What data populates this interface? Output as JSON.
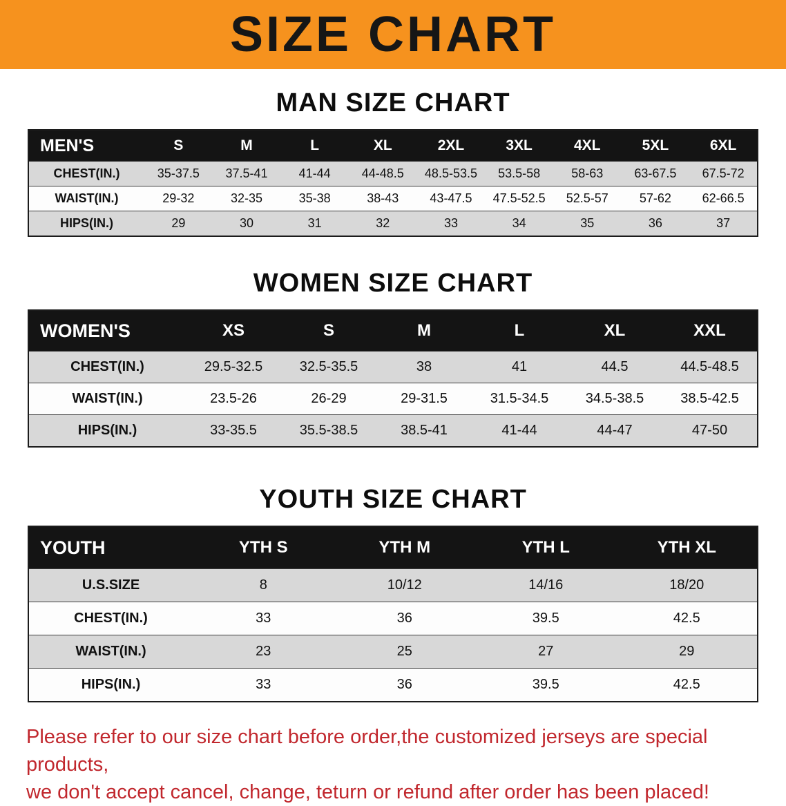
{
  "page": {
    "banner_title": "SIZE CHART",
    "accent_orange": "#f6921e",
    "table_header_bg": "#141414",
    "row_alt_bg": "#d8d8d8",
    "disclaimer_color": "#c1272d",
    "disclaimer_line1": "Please refer to our size chart before order,the customized jerseys are special products,",
    "disclaimer_line2": "we don't accept cancel, change, teturn or refund after order has been placed!"
  },
  "chart_data": [
    {
      "type": "table",
      "title": "MAN SIZE CHART",
      "corner_label": "MEN'S",
      "columns": [
        "S",
        "M",
        "L",
        "XL",
        "2XL",
        "3XL",
        "4XL",
        "5XL",
        "6XL"
      ],
      "rows": [
        {
          "label": "CHEST(IN.)",
          "values": [
            "35-37.5",
            "37.5-41",
            "41-44",
            "44-48.5",
            "48.5-53.5",
            "53.5-58",
            "58-63",
            "63-67.5",
            "67.5-72"
          ]
        },
        {
          "label": "WAIST(IN.)",
          "values": [
            "29-32",
            "32-35",
            "35-38",
            "38-43",
            "43-47.5",
            "47.5-52.5",
            "52.5-57",
            "57-62",
            "62-66.5"
          ]
        },
        {
          "label": "HIPS(IN.)",
          "values": [
            "29",
            "30",
            "31",
            "32",
            "33",
            "34",
            "35",
            "36",
            "37"
          ]
        }
      ]
    },
    {
      "type": "table",
      "title": "WOMEN SIZE CHART",
      "corner_label": "WOMEN'S",
      "columns": [
        "XS",
        "S",
        "M",
        "L",
        "XL",
        "XXL"
      ],
      "rows": [
        {
          "label": "CHEST(IN.)",
          "values": [
            "29.5-32.5",
            "32.5-35.5",
            "38",
            "41",
            "44.5",
            "44.5-48.5"
          ]
        },
        {
          "label": "WAIST(IN.)",
          "values": [
            "23.5-26",
            "26-29",
            "29-31.5",
            "31.5-34.5",
            "34.5-38.5",
            "38.5-42.5"
          ]
        },
        {
          "label": "HIPS(IN.)",
          "values": [
            "33-35.5",
            "35.5-38.5",
            "38.5-41",
            "41-44",
            "44-47",
            "47-50"
          ]
        }
      ]
    },
    {
      "type": "table",
      "title": "YOUTH SIZE CHART",
      "corner_label": "YOUTH",
      "columns": [
        "YTH S",
        "YTH M",
        "YTH L",
        "YTH XL"
      ],
      "rows": [
        {
          "label": "U.S.SIZE",
          "values": [
            "8",
            "10/12",
            "14/16",
            "18/20"
          ]
        },
        {
          "label": "CHEST(IN.)",
          "values": [
            "33",
            "36",
            "39.5",
            "42.5"
          ]
        },
        {
          "label": "WAIST(IN.)",
          "values": [
            "23",
            "25",
            "27",
            "29"
          ]
        },
        {
          "label": "HIPS(IN.)",
          "values": [
            "33",
            "36",
            "39.5",
            "42.5"
          ]
        }
      ]
    }
  ]
}
